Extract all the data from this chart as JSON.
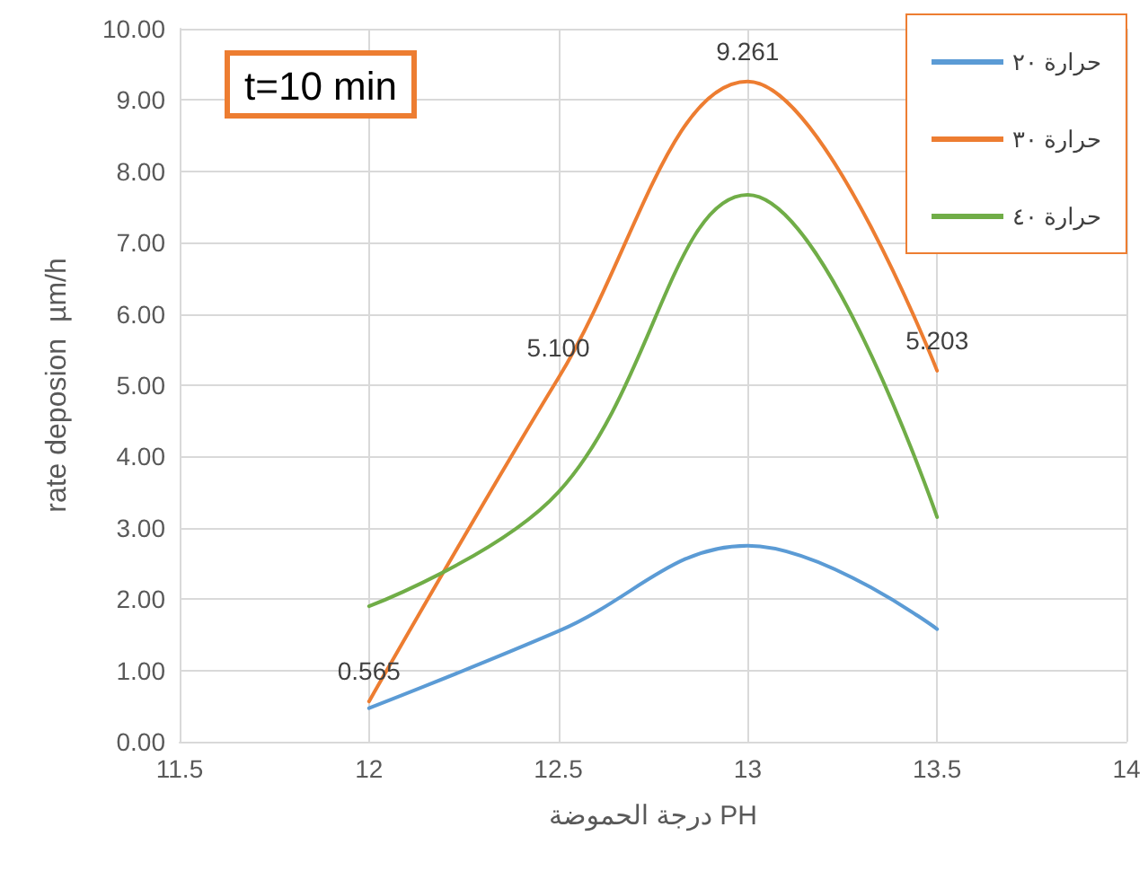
{
  "chart_data": {
    "type": "line",
    "xlabel": "درجة الحموضة PH",
    "ylabel": "rate deposion  µm/h",
    "annotations": [
      "t=10 min"
    ],
    "x": [
      12,
      12.5,
      13,
      13.5
    ],
    "series": [
      {
        "name": "حرارة ٢٠",
        "color": "#5b9bd5",
        "values": [
          0.47,
          1.55,
          2.75,
          1.58
        ]
      },
      {
        "name": "حرارة ٣٠",
        "color": "#ed7d31",
        "values": [
          0.565,
          5.1,
          9.261,
          5.203
        ],
        "value_labels": [
          "0.565",
          "5.100",
          "9.261",
          "5.203"
        ]
      },
      {
        "name": "حرارة ٤٠",
        "color": "#70ad47",
        "values": [
          1.9,
          3.5,
          7.67,
          3.15
        ]
      }
    ],
    "xlim": [
      11.5,
      14
    ],
    "xticks": [
      11.5,
      12,
      12.5,
      13,
      13.5,
      14
    ],
    "ylim": [
      0,
      10
    ],
    "yticks": [
      {
        "value": 0,
        "label": "0.00"
      },
      {
        "value": 1,
        "label": "1.00"
      },
      {
        "value": 2,
        "label": "2.00"
      },
      {
        "value": 3,
        "label": "3.00"
      },
      {
        "value": 4,
        "label": "4.00"
      },
      {
        "value": 5,
        "label": "5.00"
      },
      {
        "value": 6,
        "label": "6.00"
      },
      {
        "value": 7,
        "label": "7.00"
      },
      {
        "value": 8,
        "label": "8.00"
      },
      {
        "value": 9,
        "label": "9.00"
      },
      {
        "value": 10,
        "label": "10.00"
      }
    ],
    "grid": true,
    "legend": "top right",
    "marker": "none",
    "line_style": "solid"
  }
}
